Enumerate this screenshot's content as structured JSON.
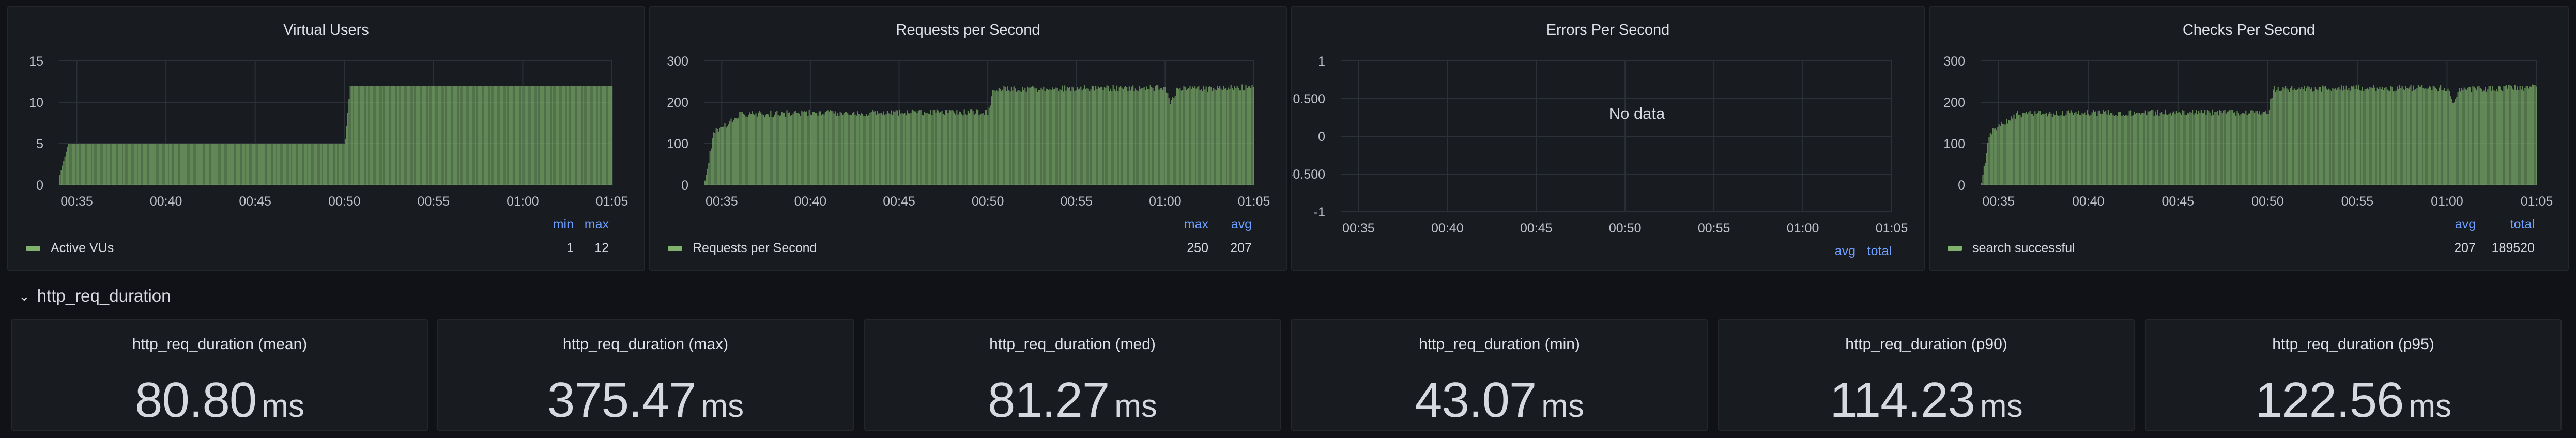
{
  "timeseries_panels": [
    {
      "title": "Virtual Users",
      "no_data_text": "",
      "x_ticks": [
        "00:35",
        "00:40",
        "00:45",
        "00:50",
        "00:55",
        "01:00",
        "01:05"
      ],
      "y_ticks": [
        "0",
        "5",
        "10",
        "15"
      ],
      "legend": {
        "headers": [
          "min",
          "max"
        ],
        "rows": [
          {
            "name": "Active VUs",
            "color": "#7eb26d",
            "values": [
              "1",
              "12"
            ]
          }
        ]
      }
    },
    {
      "title": "Requests per Second",
      "no_data_text": "",
      "x_ticks": [
        "00:35",
        "00:40",
        "00:45",
        "00:50",
        "00:55",
        "01:00",
        "01:05"
      ],
      "y_ticks": [
        "0",
        "100",
        "200",
        "300"
      ],
      "legend": {
        "headers": [
          "max",
          "avg"
        ],
        "rows": [
          {
            "name": "Requests per Second",
            "color": "#7eb26d",
            "values": [
              "250",
              "207"
            ]
          }
        ]
      }
    },
    {
      "title": "Errors Per Second",
      "no_data_text": "No data",
      "x_ticks": [
        "00:35",
        "00:40",
        "00:45",
        "00:50",
        "00:55",
        "01:00",
        "01:05"
      ],
      "y_ticks": [
        "-1",
        "-0.500",
        "0",
        "0.500",
        "1"
      ],
      "legend": {
        "headers": [
          "avg",
          "total"
        ],
        "rows": []
      }
    },
    {
      "title": "Checks Per Second",
      "no_data_text": "",
      "x_ticks": [
        "00:35",
        "00:40",
        "00:45",
        "00:50",
        "00:55",
        "01:00",
        "01:05"
      ],
      "y_ticks": [
        "0",
        "100",
        "200",
        "300"
      ],
      "legend": {
        "headers": [
          "avg",
          "total"
        ],
        "rows": [
          {
            "name": "search successful",
            "color": "#7eb26d",
            "values": [
              "207",
              "189520"
            ]
          }
        ]
      }
    }
  ],
  "chart_data": [
    {
      "type": "area",
      "title": "Virtual Users",
      "xlim": [
        "00:34",
        "01:05"
      ],
      "ylim": [
        0,
        15
      ],
      "grid": true,
      "legend_placement": "bottom-left",
      "series": [
        {
          "name": "Active VUs",
          "color": "#7eb26d",
          "x": [
            "00:34",
            "00:34.5",
            "00:50",
            "00:50.3",
            "01:05"
          ],
          "values": [
            1,
            5,
            5,
            12,
            12
          ]
        }
      ]
    },
    {
      "type": "area",
      "title": "Requests per Second",
      "xlim": [
        "00:34",
        "01:05"
      ],
      "ylim": [
        0,
        300
      ],
      "grid": true,
      "legend_placement": "bottom-left",
      "series": [
        {
          "name": "Requests per Second",
          "color": "#7eb26d",
          "x": [
            "00:34",
            "00:34.5",
            "00:36",
            "00:40",
            "00:45",
            "00:50",
            "00:50.3",
            "00:55",
            "01:00",
            "01:00.3",
            "01:00.6",
            "01:05"
          ],
          "values": [
            0,
            130,
            175,
            178,
            179,
            180,
            235,
            238,
            238,
            200,
            235,
            240
          ]
        }
      ]
    },
    {
      "type": "area",
      "title": "Errors Per Second",
      "xlim": [
        "00:34",
        "01:05"
      ],
      "ylim": [
        -1,
        1
      ],
      "grid": true,
      "legend_placement": "bottom-right",
      "series": []
    },
    {
      "type": "area",
      "title": "Checks Per Second",
      "xlim": [
        "00:34",
        "01:05"
      ],
      "ylim": [
        0,
        300
      ],
      "grid": true,
      "legend_placement": "bottom-left",
      "series": [
        {
          "name": "search successful",
          "color": "#7eb26d",
          "x": [
            "00:34",
            "00:34.5",
            "00:36",
            "00:40",
            "00:45",
            "00:50",
            "00:50.3",
            "00:55",
            "01:00",
            "01:00.3",
            "01:00.6",
            "01:05"
          ],
          "values": [
            0,
            130,
            175,
            178,
            179,
            180,
            235,
            238,
            238,
            200,
            235,
            240
          ]
        }
      ]
    }
  ],
  "row": {
    "chevron_icon": "chevron-down-icon",
    "title": "http_req_duration"
  },
  "stats": [
    {
      "title": "http_req_duration (mean)",
      "value": "80.80",
      "unit": "ms"
    },
    {
      "title": "http_req_duration (max)",
      "value": "375.47",
      "unit": "ms"
    },
    {
      "title": "http_req_duration (med)",
      "value": "81.27",
      "unit": "ms"
    },
    {
      "title": "http_req_duration (min)",
      "value": "43.07",
      "unit": "ms"
    },
    {
      "title": "http_req_duration (p90)",
      "value": "114.23",
      "unit": "ms"
    },
    {
      "title": "http_req_duration (p95)",
      "value": "122.56",
      "unit": "ms"
    }
  ],
  "colors": {
    "background": "#111217",
    "panel": "#181b1f",
    "series": "#7eb26d",
    "legend_header": "#6e9fff"
  }
}
